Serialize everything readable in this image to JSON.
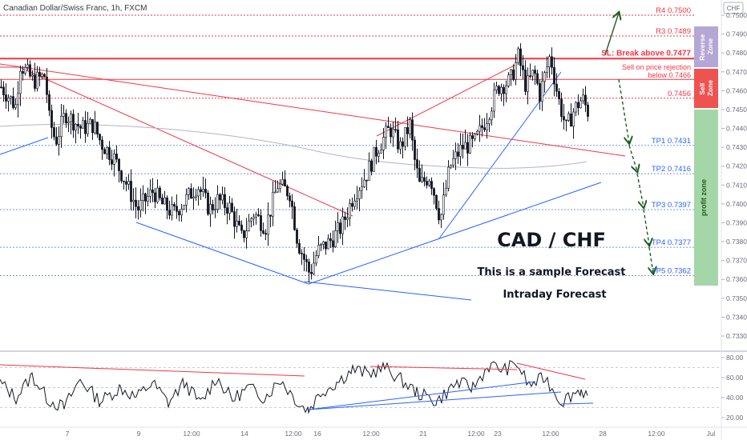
{
  "header": {
    "title": "Canadian Dollar/Swiss Franc, 1h, FXCM",
    "currency_badge": "CHF",
    "minimize_icon": "minus-icon"
  },
  "annotations": {
    "pair": "CAD / CHF",
    "line1": "This is a sample Forecast",
    "line2": "Intraday Forecast"
  },
  "zones": {
    "reverse": "Reverse Zone",
    "sell": "Sell Zone",
    "profit": "profit zone"
  },
  "colors": {
    "bull": "#ffffff",
    "bear": "#131722",
    "resistance": "#f23645",
    "trend": "#2962ff",
    "arrows": "#1b5e20",
    "profit_zone": "#a5d6a7",
    "sell_zone": "#ef5350",
    "reverse_zone": "#b4a7d6",
    "tp_text": "#2962ff",
    "r_text": "#f23645"
  },
  "chart_data": [
    {
      "type": "candlestick",
      "title": "Canadian Dollar/Swiss Franc, 1h, FXCM",
      "ylim": [
        0.7325,
        0.7505
      ],
      "y_ticks": [
        "0.75000",
        "0.74900",
        "0.74800",
        "0.74700",
        "0.74600",
        "0.74500",
        "0.74400",
        "0.74300",
        "0.74200",
        "0.74100",
        "0.74000",
        "0.73900",
        "0.73800",
        "0.73700",
        "0.73600",
        "0.73500",
        "0.73400",
        "0.73300"
      ],
      "x_ticks": [
        "7",
        "9",
        "12:00",
        "14",
        "12:00",
        "16",
        "12:00",
        "21",
        "12:00",
        "23",
        "12:00",
        "28",
        "12:00",
        "Jul"
      ],
      "levels": [
        {
          "label": "R4 0.7500",
          "value": 0.75,
          "kind": "resistance"
        },
        {
          "label": "R3 0.7489",
          "value": 0.7489,
          "kind": "resistance"
        },
        {
          "label": "SL: Break above 0.7477",
          "value": 0.7477,
          "kind": "stop"
        },
        {
          "label": "Sell on price rejection",
          "label2": "below 0.7466",
          "value": 0.7466,
          "kind": "entry"
        },
        {
          "label": "0.7456",
          "value": 0.7456,
          "kind": "resistance"
        },
        {
          "label": "TP1 0.7431",
          "value": 0.7431,
          "kind": "target"
        },
        {
          "label": "TP2 0.7416",
          "value": 0.7416,
          "kind": "target"
        },
        {
          "label": "TP3 0.7397",
          "value": 0.7397,
          "kind": "target"
        },
        {
          "label": "TP4 0.7377",
          "value": 0.7377,
          "kind": "target"
        },
        {
          "label": "TP5 0.7362",
          "value": 0.7362,
          "kind": "target"
        }
      ],
      "price_path": [
        {
          "x": 0,
          "y": 0.7462
        },
        {
          "x": 18,
          "y": 0.7452
        },
        {
          "x": 24,
          "y": 0.7474
        },
        {
          "x": 40,
          "y": 0.7465
        },
        {
          "x": 55,
          "y": 0.7468
        },
        {
          "x": 60,
          "y": 0.7445
        },
        {
          "x": 68,
          "y": 0.7433
        },
        {
          "x": 80,
          "y": 0.7448
        },
        {
          "x": 100,
          "y": 0.744
        },
        {
          "x": 115,
          "y": 0.7442
        },
        {
          "x": 125,
          "y": 0.7432
        },
        {
          "x": 140,
          "y": 0.7425
        },
        {
          "x": 155,
          "y": 0.7412
        },
        {
          "x": 170,
          "y": 0.7397
        },
        {
          "x": 190,
          "y": 0.7407
        },
        {
          "x": 200,
          "y": 0.74
        },
        {
          "x": 215,
          "y": 0.7395
        },
        {
          "x": 230,
          "y": 0.7402
        },
        {
          "x": 245,
          "y": 0.741
        },
        {
          "x": 260,
          "y": 0.7397
        },
        {
          "x": 270,
          "y": 0.7402
        },
        {
          "x": 285,
          "y": 0.7398
        },
        {
          "x": 300,
          "y": 0.7382
        },
        {
          "x": 315,
          "y": 0.7395
        },
        {
          "x": 330,
          "y": 0.7388
        },
        {
          "x": 345,
          "y": 0.741
        },
        {
          "x": 360,
          "y": 0.7406
        },
        {
          "x": 370,
          "y": 0.738
        },
        {
          "x": 385,
          "y": 0.7363
        },
        {
          "x": 395,
          "y": 0.7375
        },
        {
          "x": 410,
          "y": 0.738
        },
        {
          "x": 425,
          "y": 0.7388
        },
        {
          "x": 440,
          "y": 0.7405
        },
        {
          "x": 455,
          "y": 0.7415
        },
        {
          "x": 470,
          "y": 0.743
        },
        {
          "x": 485,
          "y": 0.744
        },
        {
          "x": 498,
          "y": 0.743
        },
        {
          "x": 510,
          "y": 0.7442
        },
        {
          "x": 515,
          "y": 0.7425
        },
        {
          "x": 522,
          "y": 0.741
        },
        {
          "x": 535,
          "y": 0.7415
        },
        {
          "x": 548,
          "y": 0.7392
        },
        {
          "x": 560,
          "y": 0.742
        },
        {
          "x": 575,
          "y": 0.743
        },
        {
          "x": 590,
          "y": 0.7432
        },
        {
          "x": 605,
          "y": 0.7445
        },
        {
          "x": 620,
          "y": 0.7462
        },
        {
          "x": 635,
          "y": 0.7465
        },
        {
          "x": 645,
          "y": 0.7478
        },
        {
          "x": 655,
          "y": 0.7462
        },
        {
          "x": 665,
          "y": 0.747
        },
        {
          "x": 672,
          "y": 0.7458
        },
        {
          "x": 685,
          "y": 0.7479
        },
        {
          "x": 695,
          "y": 0.7456
        },
        {
          "x": 705,
          "y": 0.744
        },
        {
          "x": 715,
          "y": 0.745
        },
        {
          "x": 725,
          "y": 0.7456
        },
        {
          "x": 733,
          "y": 0.7448
        }
      ],
      "forecast_path": [
        {
          "x": 755,
          "y": 0.7479
        },
        {
          "x": 772,
          "y": 0.75
        },
        {
          "x": 772,
          "y": 0.7466
        },
        {
          "x": 785,
          "y": 0.7431
        },
        {
          "x": 795,
          "y": 0.7416
        },
        {
          "x": 803,
          "y": 0.7397
        },
        {
          "x": 810,
          "y": 0.7377
        },
        {
          "x": 815,
          "y": 0.7362
        }
      ]
    },
    {
      "type": "line",
      "title": "",
      "ylim": [
        15,
        85
      ],
      "y_ticks": [
        "80.00",
        "60.00",
        "40.00",
        "20.00"
      ],
      "indicator_path": [
        {
          "x": 0,
          "y": 55
        },
        {
          "x": 20,
          "y": 40
        },
        {
          "x": 40,
          "y": 62
        },
        {
          "x": 60,
          "y": 38
        },
        {
          "x": 80,
          "y": 30
        },
        {
          "x": 100,
          "y": 58
        },
        {
          "x": 125,
          "y": 36
        },
        {
          "x": 150,
          "y": 50
        },
        {
          "x": 170,
          "y": 40
        },
        {
          "x": 190,
          "y": 55
        },
        {
          "x": 210,
          "y": 35
        },
        {
          "x": 230,
          "y": 55
        },
        {
          "x": 250,
          "y": 34
        },
        {
          "x": 270,
          "y": 60
        },
        {
          "x": 290,
          "y": 38
        },
        {
          "x": 310,
          "y": 50
        },
        {
          "x": 330,
          "y": 40
        },
        {
          "x": 350,
          "y": 58
        },
        {
          "x": 375,
          "y": 32
        },
        {
          "x": 385,
          "y": 28
        },
        {
          "x": 400,
          "y": 45
        },
        {
          "x": 420,
          "y": 55
        },
        {
          "x": 440,
          "y": 68
        },
        {
          "x": 460,
          "y": 64
        },
        {
          "x": 480,
          "y": 70
        },
        {
          "x": 500,
          "y": 58
        },
        {
          "x": 520,
          "y": 45
        },
        {
          "x": 545,
          "y": 36
        },
        {
          "x": 570,
          "y": 55
        },
        {
          "x": 590,
          "y": 50
        },
        {
          "x": 610,
          "y": 72
        },
        {
          "x": 630,
          "y": 68
        },
        {
          "x": 645,
          "y": 74
        },
        {
          "x": 660,
          "y": 52
        },
        {
          "x": 680,
          "y": 60
        },
        {
          "x": 700,
          "y": 36
        },
        {
          "x": 715,
          "y": 44
        },
        {
          "x": 725,
          "y": 48
        },
        {
          "x": 733,
          "y": 42
        }
      ]
    }
  ]
}
